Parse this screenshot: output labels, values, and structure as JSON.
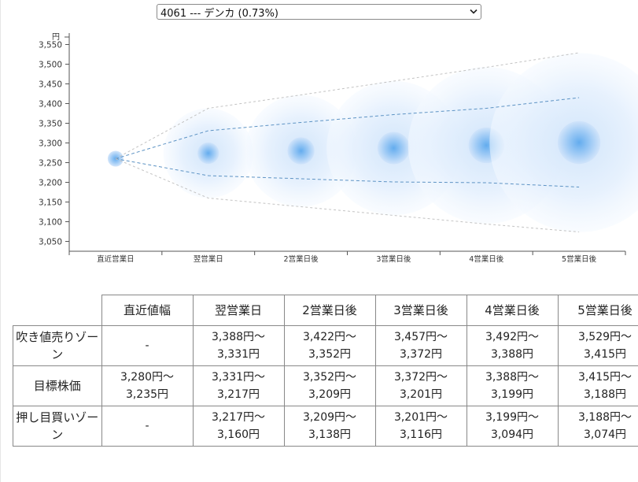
{
  "selector": {
    "selected": "4061 --- デンカ (0.73%)"
  },
  "chart_data": {
    "type": "bubble-range",
    "ylabel": "円",
    "ylim": [
      3025,
      3575
    ],
    "yticks": [
      3050,
      3100,
      3150,
      3200,
      3250,
      3300,
      3350,
      3400,
      3450,
      3500,
      3550
    ],
    "ytick_labels": [
      "3,050",
      "3,100",
      "3,150",
      "3,200",
      "3,250",
      "3,300",
      "3,350",
      "3,400",
      "3,450",
      "3,500",
      "3,550"
    ],
    "categories": [
      "直近営業日",
      "翌営業日",
      "2営業日後",
      "3営業日後",
      "4営業日後",
      "5営業日後"
    ],
    "series": [
      {
        "values": [
          3260,
          3388,
          3422,
          3457,
          3492,
          3529
        ]
      },
      {
        "values": [
          3260,
          3331,
          3352,
          3372,
          3388,
          3415
        ]
      },
      {
        "values": [
          3260,
          3217,
          3209,
          3201,
          3199,
          3188
        ]
      },
      {
        "values": [
          3260,
          3160,
          3138,
          3116,
          3094,
          3074
        ]
      }
    ],
    "center": [
      3260,
      3274,
      3280,
      3287,
      3294,
      3301
    ],
    "grid": false,
    "accent": "#4a9ce8"
  },
  "table": {
    "headers": [
      "",
      "直近値幅",
      "翌営業日",
      "2営業日後",
      "3営業日後",
      "4営業日後",
      "5営業日後"
    ],
    "rows": [
      {
        "label": "吹き値売りゾーン",
        "cells": [
          {
            "l1": "-",
            "l2": ""
          },
          {
            "l1": "3,388円〜",
            "l2": "3,331円"
          },
          {
            "l1": "3,422円〜",
            "l2": "3,352円"
          },
          {
            "l1": "3,457円〜",
            "l2": "3,372円"
          },
          {
            "l1": "3,492円〜",
            "l2": "3,388円"
          },
          {
            "l1": "3,529円〜",
            "l2": "3,415円"
          }
        ]
      },
      {
        "label": "目標株価",
        "cells": [
          {
            "l1": "3,280円〜",
            "l2": "3,235円"
          },
          {
            "l1": "3,331円〜",
            "l2": "3,217円"
          },
          {
            "l1": "3,352円〜",
            "l2": "3,209円"
          },
          {
            "l1": "3,372円〜",
            "l2": "3,201円"
          },
          {
            "l1": "3,388円〜",
            "l2": "3,199円"
          },
          {
            "l1": "3,415円〜",
            "l2": "3,188円"
          }
        ]
      },
      {
        "label": "押し目買いゾーン",
        "cells": [
          {
            "l1": "-",
            "l2": ""
          },
          {
            "l1": "3,217円〜",
            "l2": "3,160円"
          },
          {
            "l1": "3,209円〜",
            "l2": "3,138円"
          },
          {
            "l1": "3,201円〜",
            "l2": "3,116円"
          },
          {
            "l1": "3,199円〜",
            "l2": "3,094円"
          },
          {
            "l1": "3,188円〜",
            "l2": "3,074円"
          }
        ]
      }
    ]
  }
}
